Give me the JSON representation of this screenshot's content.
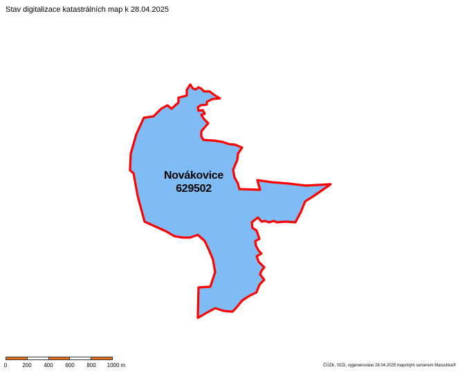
{
  "title": "Stav digitalizace katastrálních map k 28.04.2025",
  "area": {
    "name": "Novákovice",
    "code": "629502",
    "fill_color": "#7fbcf5",
    "border_color": "#ff0000"
  },
  "scale": {
    "ticks": [
      "0",
      "200",
      "400",
      "600",
      "800",
      "1000 m"
    ],
    "colors": [
      "#e8731a",
      "#ffffff"
    ]
  },
  "credit": "ČÚZK, SCD, vygenerováno 28.04.2025 mapovým serverem Marushka®"
}
